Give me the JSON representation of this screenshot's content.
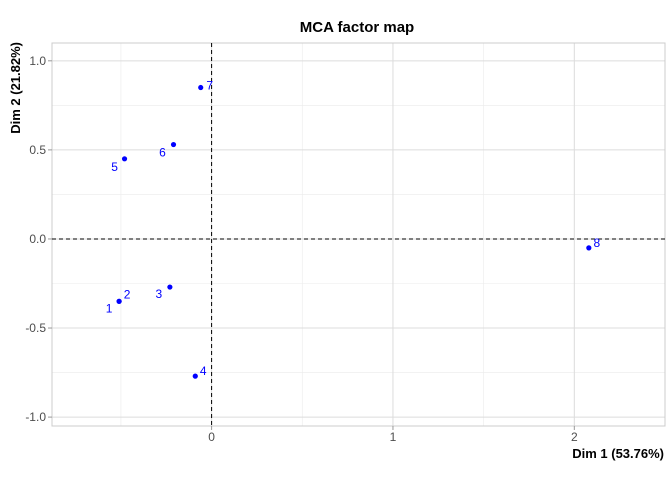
{
  "chart_data": {
    "type": "scatter",
    "title": "MCA factor map",
    "xlabel": "Dim 1 (53.76%)",
    "ylabel": "Dim 2 (21.82%)",
    "xlim": [
      -0.88,
      2.5
    ],
    "ylim": [
      -1.05,
      1.1
    ],
    "xticks": [
      0,
      1,
      2
    ],
    "yticks": [
      -1.0,
      -0.5,
      0.0,
      0.5,
      1.0
    ],
    "xtick_labels": [
      "0",
      "1",
      "2"
    ],
    "ytick_labels": [
      "-1.0",
      "-0.5",
      "0.0",
      "0.5",
      "1.0"
    ],
    "grid": true,
    "reference_lines": {
      "x": 0,
      "y": 0,
      "style": "dashed"
    },
    "point_color": "#0000ff",
    "points": [
      {
        "label": "1",
        "x": -0.51,
        "y": -0.35
      },
      {
        "label": "2",
        "x": -0.51,
        "y": -0.35
      },
      {
        "label": "3",
        "x": -0.23,
        "y": -0.27
      },
      {
        "label": "4",
        "x": -0.09,
        "y": -0.77
      },
      {
        "label": "5",
        "x": -0.48,
        "y": 0.45
      },
      {
        "label": "6",
        "x": -0.21,
        "y": 0.53
      },
      {
        "label": "7",
        "x": -0.06,
        "y": 0.85
      },
      {
        "label": "8",
        "x": 2.08,
        "y": -0.05
      }
    ]
  }
}
